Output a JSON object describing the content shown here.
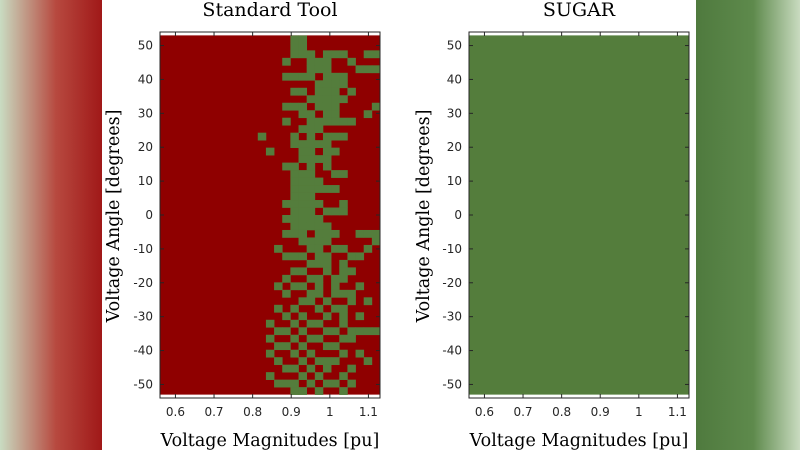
{
  "chart_data": [
    {
      "type": "heatmap",
      "title": "Standard Tool",
      "xlabel": "Voltage Magnitudes [pu]",
      "ylabel": "Voltage Angle [degrees]",
      "xlim": [
        0.56,
        1.13
      ],
      "ylim": [
        -54,
        54
      ],
      "x_ticks": [
        0.6,
        0.7,
        0.8,
        0.9,
        1,
        1.1
      ],
      "y_ticks": [
        50,
        40,
        30,
        20,
        10,
        0,
        -10,
        -20,
        -30,
        -40,
        -50
      ],
      "grid": false,
      "legend": "none",
      "colors": {
        "fail": "#8f0000",
        "pass": "#547d3c"
      },
      "cells": {
        "x_range": [
          0.56,
          1.13
        ],
        "y_range": [
          -53,
          53
        ],
        "n_cols": 27,
        "n_rows": 48,
        "default": "fail",
        "pass_rows": [
          [
            16,
            17
          ],
          [
            16,
            17
          ],
          [
            16,
            17,
            18,
            20,
            21,
            22,
            25,
            26
          ],
          [
            15,
            18,
            19,
            20,
            23
          ],
          [
            18,
            19,
            20,
            24,
            25,
            26
          ],
          [
            15,
            16,
            17,
            18,
            20,
            21,
            22
          ],
          [
            19,
            20,
            21,
            22
          ],
          [
            16,
            17,
            19,
            20,
            21,
            23
          ],
          [
            18,
            19,
            20,
            21,
            22
          ],
          [
            15,
            16,
            17,
            19,
            20,
            21,
            26
          ],
          [
            17,
            18,
            20,
            21,
            25
          ],
          [
            15,
            18,
            19,
            20,
            21,
            22,
            23
          ],
          [
            17,
            18,
            19
          ],
          [
            12,
            16,
            18,
            20,
            21,
            22
          ],
          [
            16,
            17,
            18,
            19,
            20
          ],
          [
            13,
            17,
            18,
            20,
            21
          ],
          [
            17,
            18,
            19,
            20
          ],
          [
            15,
            16,
            18,
            20
          ],
          [
            16,
            17,
            18,
            21,
            22
          ],
          [
            16,
            17,
            18,
            19
          ],
          [
            16,
            17,
            18,
            19,
            20,
            21
          ],
          [
            16,
            17,
            18
          ],
          [
            15,
            16,
            17,
            18,
            19,
            22
          ],
          [
            16,
            17,
            18,
            20,
            21,
            22
          ],
          [
            15,
            16,
            17,
            18,
            19
          ],
          [
            16,
            17,
            18,
            19,
            20
          ],
          [
            15,
            16,
            17,
            19,
            20,
            21,
            24,
            25,
            26
          ],
          [
            17,
            18,
            19,
            20,
            26
          ],
          [
            14,
            18,
            19,
            21,
            22,
            25
          ],
          [
            15,
            16,
            17,
            19,
            20,
            23,
            24
          ],
          [
            18,
            19,
            20,
            22
          ],
          [
            16,
            17,
            20,
            22,
            23
          ],
          [
            15,
            18,
            19,
            21,
            22
          ],
          [
            14,
            16,
            17,
            19,
            21,
            24
          ],
          [
            15,
            18,
            19,
            21,
            22,
            23
          ],
          [
            17,
            18,
            20,
            23,
            25
          ],
          [
            14,
            16,
            19,
            21,
            22
          ],
          [
            15,
            17,
            20,
            22,
            24
          ],
          [
            13,
            16,
            18,
            19,
            22
          ],
          [
            14,
            15,
            17,
            20,
            21,
            23,
            24,
            25,
            26
          ],
          [
            13,
            16,
            18,
            19,
            22,
            23
          ],
          [
            14,
            15,
            17,
            20,
            21
          ],
          [
            13,
            16,
            18,
            22,
            24
          ],
          [
            14,
            17,
            19,
            20,
            21,
            25
          ],
          [
            15,
            16,
            18,
            20,
            23
          ],
          [
            13,
            17,
            19,
            22
          ],
          [
            14,
            15,
            16,
            18,
            20,
            21,
            23
          ],
          [
            16,
            17,
            19,
            22
          ]
        ]
      }
    },
    {
      "type": "heatmap",
      "title": "SUGAR",
      "xlabel": "Voltage Magnitudes [pu]",
      "ylabel": "Voltage Angle [degrees]",
      "xlim": [
        0.56,
        1.13
      ],
      "ylim": [
        -54,
        54
      ],
      "x_ticks": [
        0.6,
        0.7,
        0.8,
        0.9,
        1,
        1.1
      ],
      "y_ticks": [
        50,
        40,
        30,
        20,
        10,
        0,
        -10,
        -20,
        -30,
        -40,
        -50
      ],
      "grid": false,
      "legend": "none",
      "colors": {
        "fail": "#8f0000",
        "pass": "#547d3c"
      },
      "cells": {
        "x_range": [
          0.56,
          1.13
        ],
        "y_range": [
          -53,
          53
        ],
        "default": "pass",
        "pass_rows": []
      }
    }
  ]
}
